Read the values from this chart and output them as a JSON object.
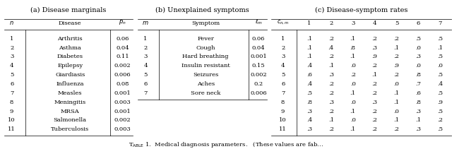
{
  "title_a": "(a) Disease marginals",
  "title_b": "(b) Unexplained symptoms",
  "title_c": "(c) Disease-symptom rates",
  "diseases": [
    [
      1,
      "Arthritis",
      "0.06"
    ],
    [
      2,
      "Asthma",
      "0.04"
    ],
    [
      3,
      "Diabetes",
      "0.11"
    ],
    [
      4,
      "Epilepsy",
      "0.002"
    ],
    [
      5,
      "Giardiasis",
      "0.006"
    ],
    [
      6,
      "Influenza",
      "0.08"
    ],
    [
      7,
      "Measles",
      "0.001"
    ],
    [
      8,
      "Meningitis",
      "0.003"
    ],
    [
      9,
      "MRSA",
      "0.001"
    ],
    [
      10,
      "Salmonella",
      "0.002"
    ],
    [
      11,
      "Tuberculosis",
      "0.003"
    ]
  ],
  "symptoms": [
    [
      1,
      "Fever",
      "0.06"
    ],
    [
      2,
      "Cough",
      "0.04"
    ],
    [
      3,
      "Hard breathing",
      "0.001"
    ],
    [
      4,
      "Insulin resistant",
      "0.15"
    ],
    [
      5,
      "Seizures",
      "0.002"
    ],
    [
      6,
      "Aches",
      "0.2"
    ],
    [
      7,
      "Sore neck",
      "0.006"
    ]
  ],
  "rates": [
    [
      ".1",
      ".2",
      ".1",
      ".2",
      ".2",
      ".5",
      ".5"
    ],
    [
      ".1",
      ".4",
      ".8",
      ".3",
      ".1",
      ".0",
      ".1"
    ],
    [
      ".1",
      ".2",
      ".1",
      ".9",
      ".2",
      ".3",
      ".5"
    ],
    [
      ".4",
      ".1",
      ".0",
      ".2",
      ".9",
      ".0",
      ".0"
    ],
    [
      ".6",
      ".3",
      ".2",
      ".1",
      ".2",
      ".8",
      ".5"
    ],
    [
      ".4",
      ".2",
      ".0",
      ".2",
      ".0",
      ".7",
      ".4"
    ],
    [
      ".5",
      ".2",
      ".1",
      ".2",
      ".1",
      ".6",
      ".5"
    ],
    [
      ".8",
      ".3",
      ".0",
      ".3",
      ".1",
      ".8",
      ".9"
    ],
    [
      ".3",
      ".2",
      ".1",
      ".2",
      ".0",
      ".3",
      ".5"
    ],
    [
      ".4",
      ".1",
      ".0",
      ".2",
      ".1",
      ".1",
      ".2"
    ],
    [
      ".3",
      ".2",
      ".1",
      ".2",
      ".2",
      ".3",
      ".5"
    ]
  ]
}
